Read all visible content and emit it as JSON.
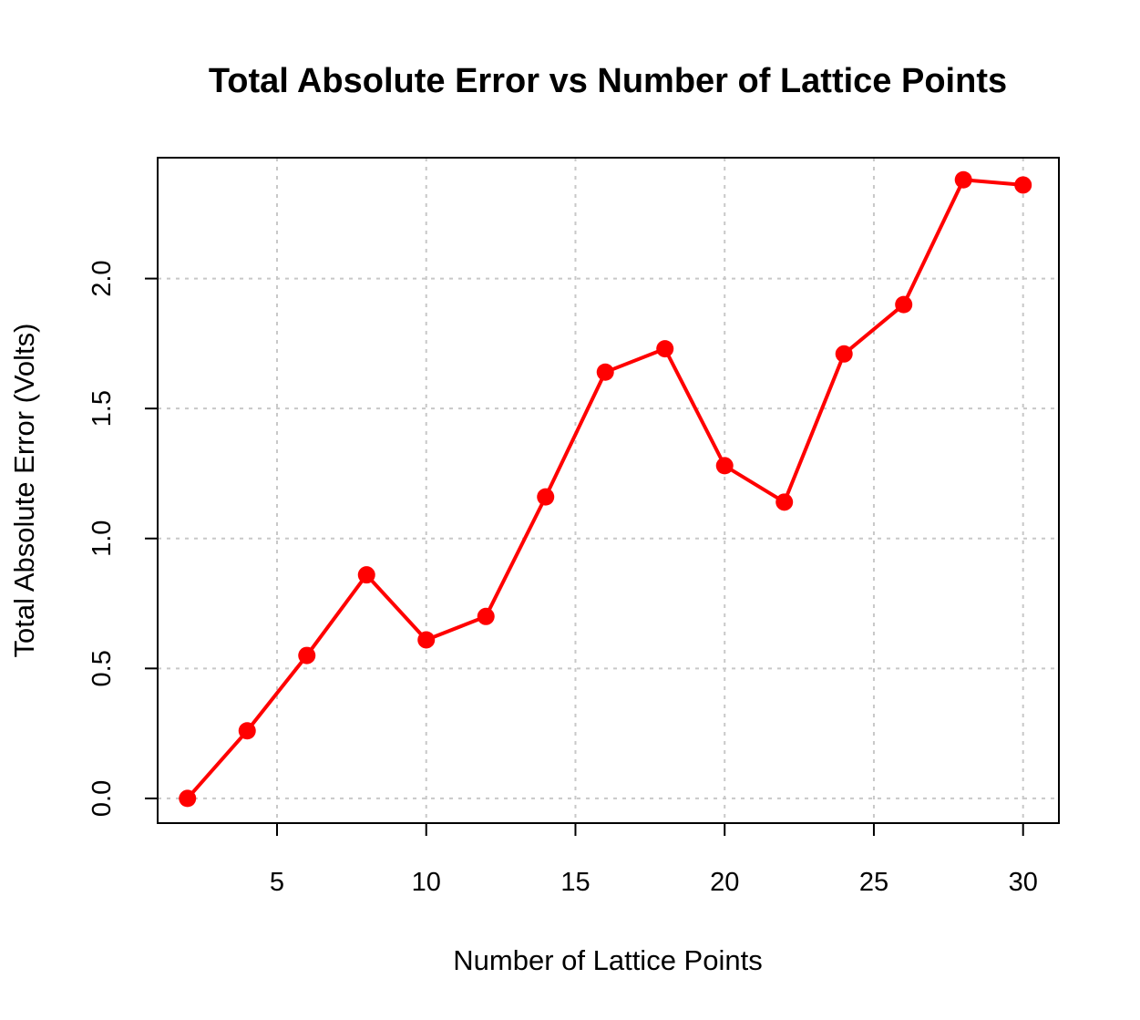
{
  "chart_data": {
    "type": "line",
    "title": "Total Absolute Error vs Number of Lattice Points",
    "xlabel": "Number of Lattice Points",
    "ylabel": "Total Absolute Error (Volts)",
    "xlim": [
      1.0,
      31.2
    ],
    "ylim": [
      -0.095,
      2.465
    ],
    "xticks": [
      5,
      10,
      15,
      20,
      25,
      30
    ],
    "xtick_labels": [
      "5",
      "10",
      "15",
      "20",
      "25",
      "30"
    ],
    "yticks": [
      0.0,
      0.5,
      1.0,
      1.5,
      2.0
    ],
    "ytick_labels": [
      "0.0",
      "0.5",
      "1.0",
      "1.5",
      "2.0"
    ],
    "grid": true,
    "line_color": "#ff0000",
    "marker": "filled-circle",
    "series": [
      {
        "x": [
          2,
          4,
          6,
          8,
          10,
          12,
          14,
          16,
          18,
          20,
          22,
          24,
          26,
          28,
          30
        ],
        "values": [
          0.0,
          0.26,
          0.55,
          0.86,
          0.61,
          0.7,
          1.16,
          1.64,
          1.73,
          1.28,
          1.14,
          1.71,
          1.9,
          2.38,
          2.36
        ]
      }
    ]
  }
}
